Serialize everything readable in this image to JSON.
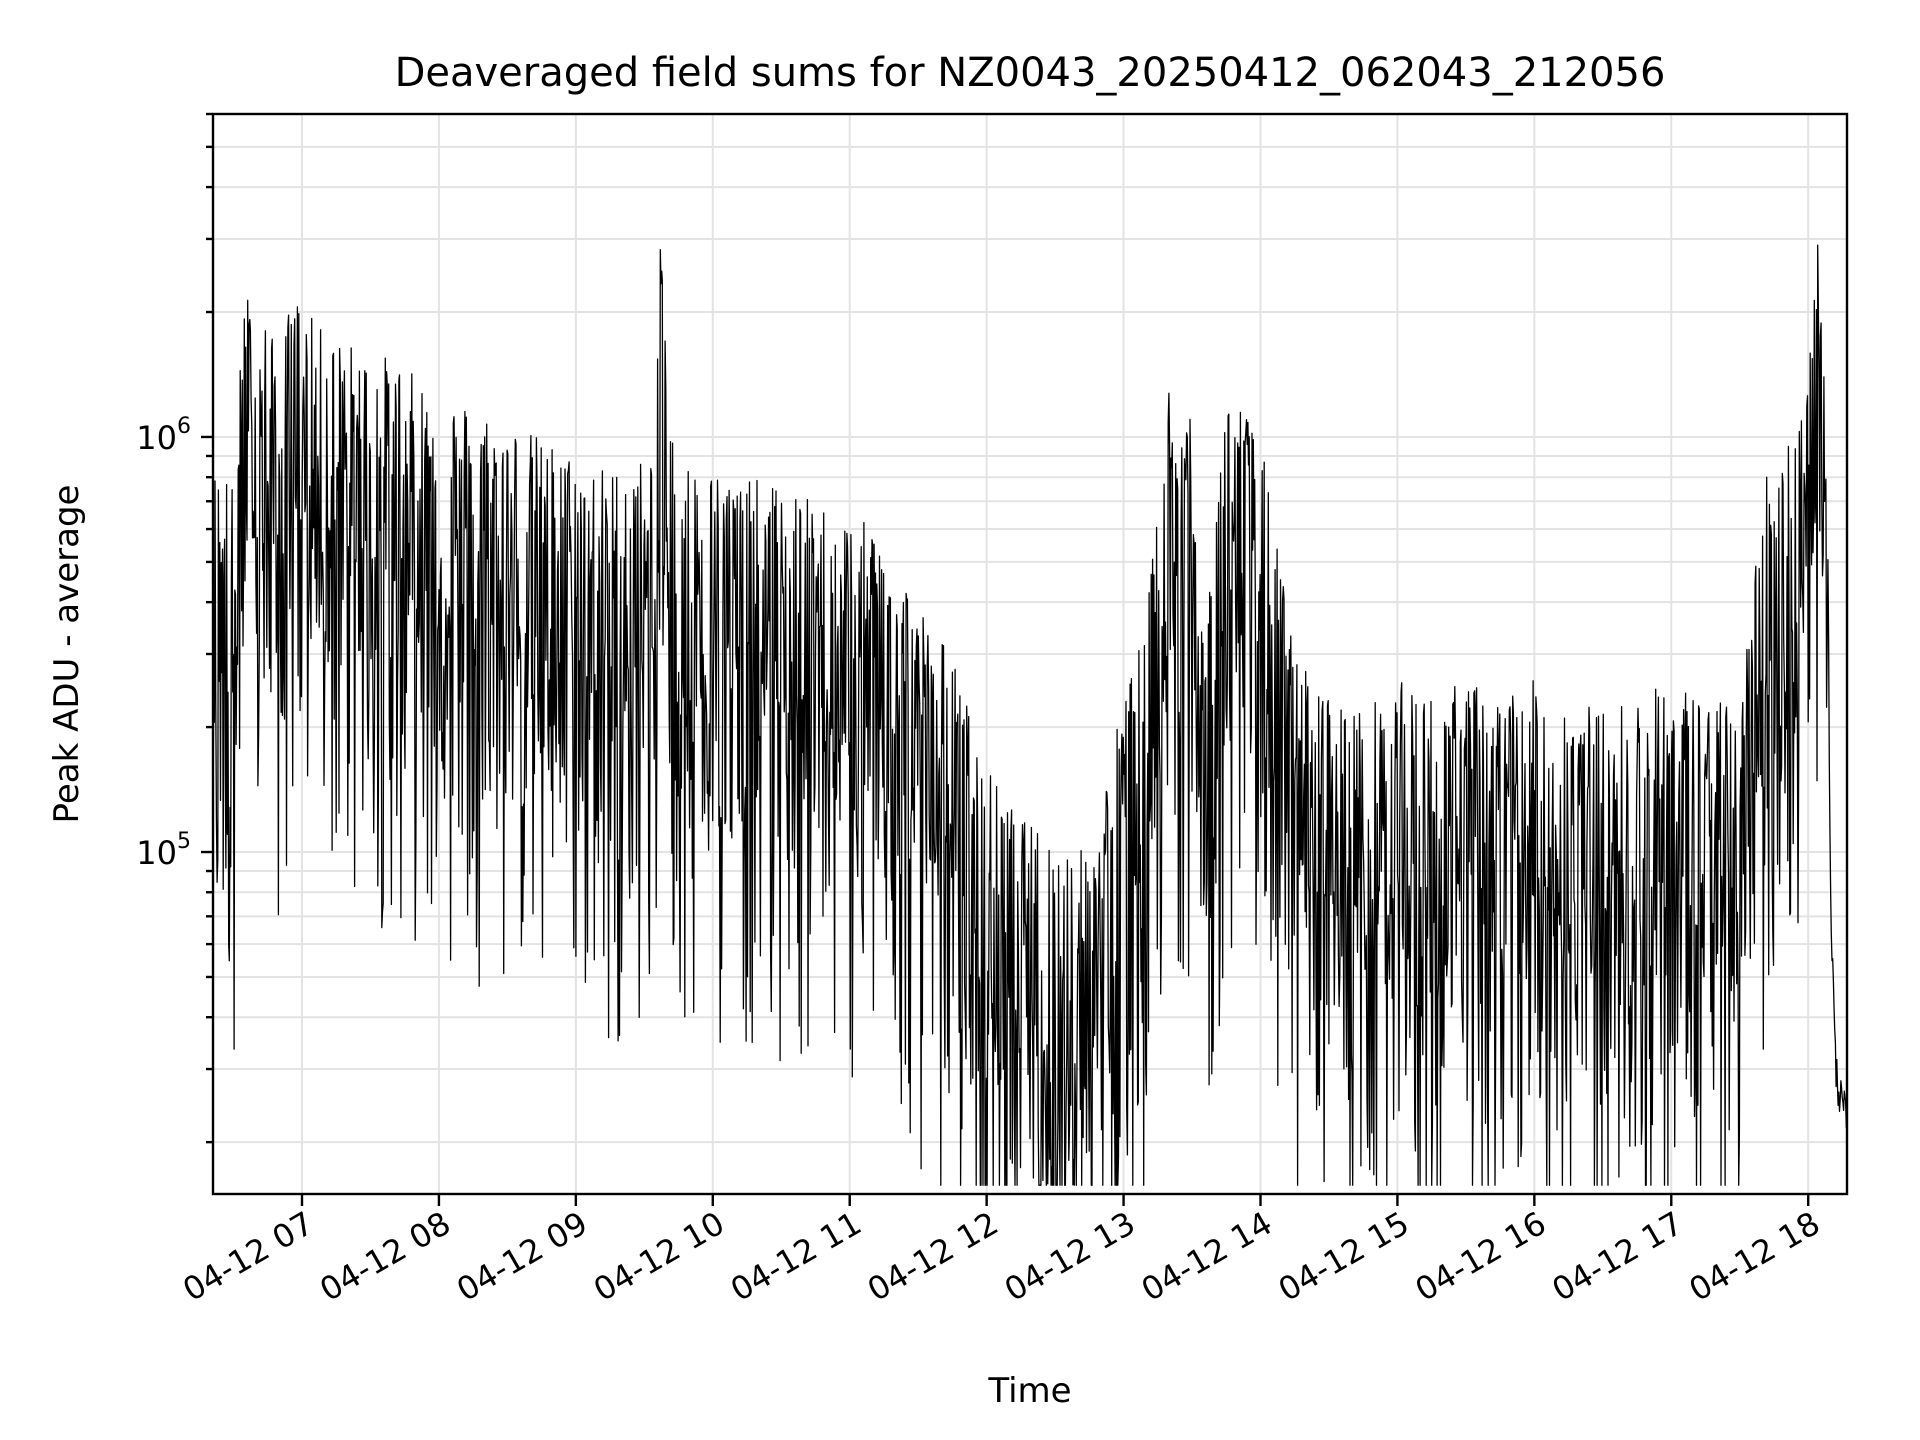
{
  "chart_data": {
    "type": "line",
    "title": "Deaveraged field sums for NZ0043_20250412_062043_212056",
    "xlabel": "Time",
    "ylabel": "Peak ADU - average",
    "yscale": "log",
    "grid": true,
    "xlim": [
      "04-12 06:21",
      "04-12 18:17"
    ],
    "ylim": [
      15000,
      6000000
    ],
    "x_ticks": [
      "04-12 07",
      "04-12 08",
      "04-12 09",
      "04-12 10",
      "04-12 11",
      "04-12 12",
      "04-12 13",
      "04-12 14",
      "04-12 15",
      "04-12 16",
      "04-12 17",
      "04-12 18"
    ],
    "y_ticks": [
      {
        "value": 100000,
        "base": "10",
        "exp": "5"
      },
      {
        "value": 1000000,
        "base": "10",
        "exp": "6"
      }
    ],
    "line_color": "#000000",
    "series": [
      {
        "x": [
          "04-12 06:21",
          "04-12 06:25",
          "04-12 06:30",
          "04-12 06:35",
          "04-12 06:40",
          "04-12 06:45",
          "04-12 06:50",
          "04-12 06:55",
          "04-12 07:00",
          "04-12 07:05",
          "04-12 07:10",
          "04-12 07:20",
          "04-12 07:30",
          "04-12 07:40",
          "04-12 07:50",
          "04-12 08:00",
          "04-12 08:15",
          "04-12 08:30",
          "04-12 08:45",
          "04-12 09:00",
          "04-12 09:15",
          "04-12 09:30",
          "04-12 09:35",
          "04-12 09:38",
          "04-12 09:40",
          "04-12 09:45",
          "04-12 10:00",
          "04-12 10:15",
          "04-12 10:30",
          "04-12 10:45",
          "04-12 11:00",
          "04-12 11:15",
          "04-12 11:30",
          "04-12 11:45",
          "04-12 12:00",
          "04-12 12:15",
          "04-12 12:30",
          "04-12 12:45",
          "04-12 13:00",
          "04-12 13:10",
          "04-12 13:20",
          "04-12 13:30",
          "04-12 13:35",
          "04-12 13:45",
          "04-12 14:00",
          "04-12 14:15",
          "04-12 14:30",
          "04-12 14:45",
          "04-12 15:00",
          "04-12 15:15",
          "04-12 15:30",
          "04-12 15:45",
          "04-12 16:00",
          "04-12 16:15",
          "04-12 16:30",
          "04-12 16:45",
          "04-12 17:00",
          "04-12 17:15",
          "04-12 17:30",
          "04-12 17:40",
          "04-12 17:50",
          "04-12 18:00",
          "04-12 18:04",
          "04-12 18:06",
          "04-12 18:08",
          "04-12 18:10",
          "04-12 18:12",
          "04-12 18:14",
          "04-12 18:17"
        ],
        "y": [
          420000,
          450000,
          380000,
          1200000,
          900000,
          1000000,
          700000,
          1100000,
          1100000,
          950000,
          900000,
          850000,
          800000,
          780000,
          700000,
          650000,
          600000,
          550000,
          500000,
          450000,
          420000,
          450000,
          500000,
          2500000,
          600000,
          450000,
          420000,
          400000,
          380000,
          350000,
          320000,
          300000,
          200000,
          150000,
          80000,
          60000,
          55000,
          50000,
          120000,
          180000,
          700000,
          600000,
          150000,
          700000,
          500000,
          150000,
          120000,
          110000,
          130000,
          120000,
          130000,
          120000,
          130000,
          120000,
          110000,
          120000,
          130000,
          120000,
          110000,
          400000,
          500000,
          700000,
          1600000,
          900000,
          500000,
          70000,
          30000,
          25000,
          22000
        ]
      }
    ]
  }
}
